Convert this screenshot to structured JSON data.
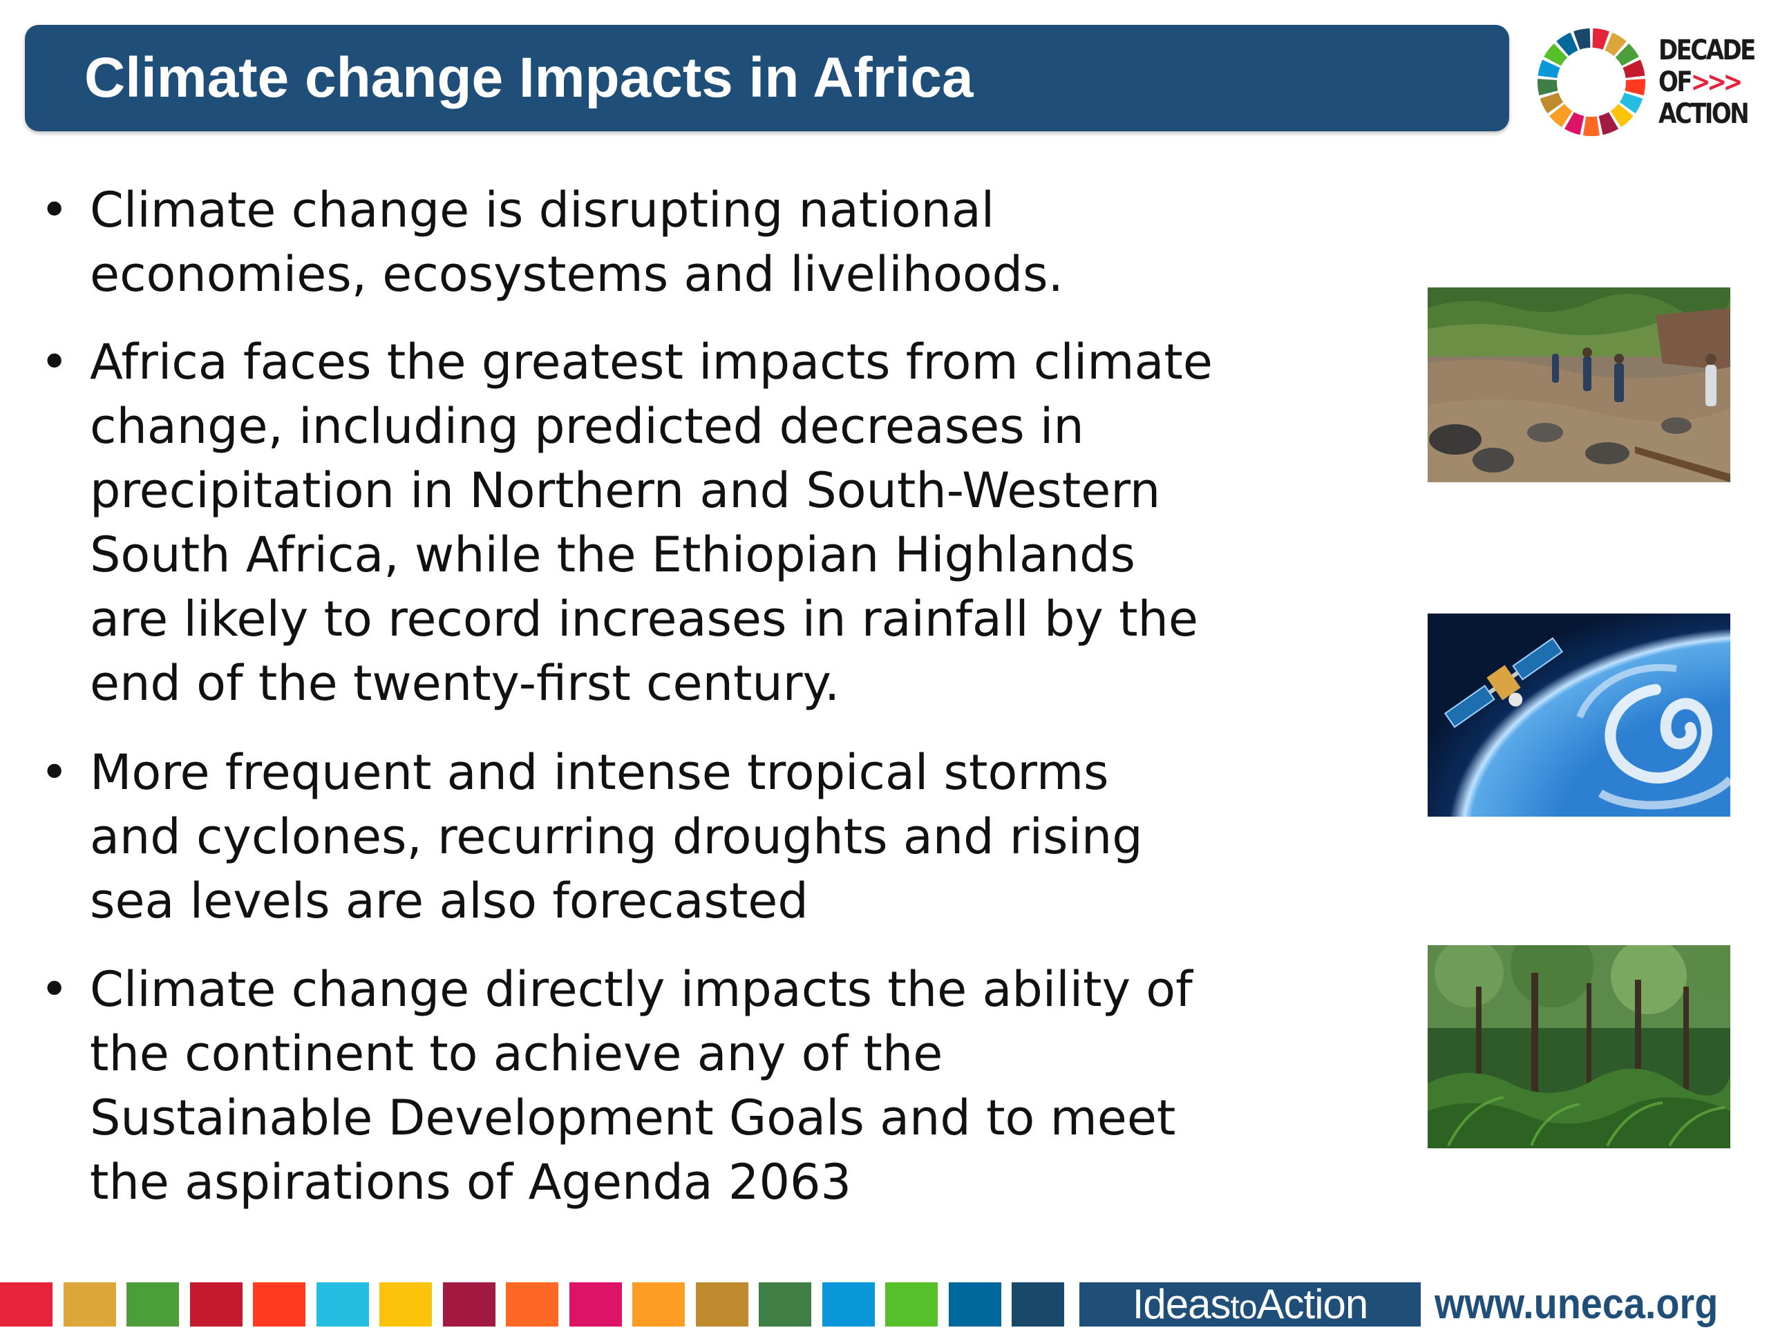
{
  "header": {
    "title": "Climate change Impacts in Africa"
  },
  "logo": {
    "line1": "DECADE",
    "line2": "OF",
    "line2_arrows": ">>>",
    "line3": "ACTION"
  },
  "bullets": [
    {
      "lines": [
        "Climate change is disrupting national",
        "economies, ecosystems and  livelihoods."
      ]
    },
    {
      "lines": [
        "Africa faces the greatest impacts from climate",
        "change, including predicted decreases in",
        "precipitation in Northern and South-Western",
        "South Africa, while the Ethiopian Highlands",
        "are likely to record increases in rainfall by the",
        "end of the twenty-first century."
      ]
    },
    {
      "lines": [
        "More frequent and intense tropical storms",
        "and cyclones, recurring droughts and rising",
        "sea levels are also forecasted"
      ]
    },
    {
      "lines": [
        "Climate change directly impacts the ability of",
        "the continent to achieve any of the",
        "Sustainable Development Goals and to meet",
        "the aspirations of Agenda 2063"
      ]
    }
  ],
  "bullet_glyph": "•",
  "photos": [
    "flood-damage",
    "satellite-over-cyclone",
    "rainforest"
  ],
  "footer": {
    "ideas": "Ideas",
    "to": "to",
    "action": "Action",
    "url": "www.uneca.org",
    "sdg_colors": [
      "#e5243b",
      "#dda63a",
      "#4c9f38",
      "#c5192d",
      "#ff3a21",
      "#26bde2",
      "#fcc30b",
      "#a21942",
      "#fd6925",
      "#dd1367",
      "#fd9d24",
      "#bf8b2e",
      "#3f7e44",
      "#0a97d9",
      "#56c02b",
      "#00689d",
      "#19486a"
    ]
  },
  "colors": {
    "primary_blue": "#1f4e79"
  }
}
